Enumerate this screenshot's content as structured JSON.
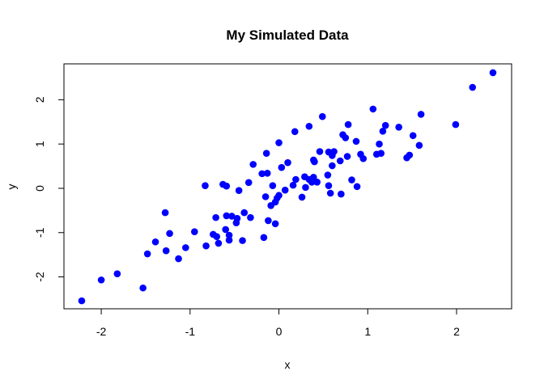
{
  "chart_data": {
    "type": "scatter",
    "title": "My Simulated Data",
    "xlabel": "x",
    "ylabel": "y",
    "xlim": [
      -2.42,
      2.62
    ],
    "ylim": [
      -2.72,
      2.81
    ],
    "xticks": [
      -2,
      -1,
      0,
      1,
      2
    ],
    "yticks": [
      -2,
      -1,
      0,
      1,
      2
    ],
    "grid": false,
    "legend": "none",
    "point_color": "#0000ff",
    "series": [
      {
        "x": [
          -2.22,
          -2.0,
          -1.82,
          -1.53,
          -1.48,
          -1.39,
          -1.28,
          -1.27,
          -1.23,
          -1.13,
          -1.05,
          -0.95,
          -0.83,
          -0.82,
          -0.74,
          -0.71,
          -0.7,
          -0.68,
          -0.63,
          -0.6,
          -0.59,
          -0.59,
          -0.56,
          -0.56,
          -0.53,
          -0.48,
          -0.47,
          -0.45,
          -0.41,
          -0.39,
          -0.34,
          -0.32,
          -0.29,
          -0.19,
          -0.17,
          -0.15,
          -0.14,
          -0.13,
          -0.12,
          -0.09,
          -0.07,
          -0.04,
          -0.04,
          -0.02,
          0.0,
          0.0,
          0.03,
          0.07,
          0.1,
          0.16,
          0.18,
          0.19,
          0.26,
          0.29,
          0.3,
          0.34,
          0.34,
          0.37,
          0.39,
          0.39,
          0.4,
          0.43,
          0.46,
          0.49,
          0.55,
          0.56,
          0.56,
          0.58,
          0.6,
          0.6,
          0.62,
          0.69,
          0.7,
          0.72,
          0.75,
          0.77,
          0.78,
          0.82,
          0.87,
          0.88,
          0.92,
          0.95,
          1.06,
          1.1,
          1.13,
          1.15,
          1.17,
          1.2,
          1.35,
          1.44,
          1.47,
          1.51,
          1.58,
          1.6,
          1.99,
          2.18,
          2.41
        ],
        "y": [
          -2.54,
          -2.07,
          -1.93,
          -2.25,
          -1.48,
          -1.21,
          -0.55,
          -1.41,
          -1.02,
          -1.59,
          -1.34,
          -0.98,
          0.06,
          -1.3,
          -1.04,
          -0.66,
          -1.09,
          -1.24,
          0.09,
          -0.93,
          0.05,
          -0.62,
          -1.17,
          -1.06,
          -0.63,
          -0.78,
          -0.68,
          -0.05,
          -1.18,
          -0.55,
          0.13,
          -0.66,
          0.54,
          0.33,
          -1.11,
          -0.19,
          0.79,
          0.34,
          -0.73,
          -0.39,
          0.06,
          -0.31,
          -0.8,
          -0.22,
          -0.16,
          1.03,
          0.47,
          -0.04,
          0.58,
          0.07,
          1.28,
          0.2,
          -0.2,
          0.26,
          0.02,
          0.2,
          1.4,
          0.14,
          0.25,
          0.64,
          0.6,
          0.14,
          0.83,
          1.62,
          0.3,
          0.06,
          0.82,
          -0.11,
          0.74,
          0.51,
          0.83,
          0.62,
          -0.13,
          1.21,
          1.14,
          0.72,
          1.44,
          0.19,
          1.06,
          0.04,
          0.77,
          0.67,
          1.79,
          0.77,
          1.0,
          0.79,
          1.29,
          1.42,
          1.38,
          0.69,
          0.75,
          1.19,
          0.97,
          1.67,
          1.44,
          2.28,
          2.61
        ]
      }
    ]
  }
}
